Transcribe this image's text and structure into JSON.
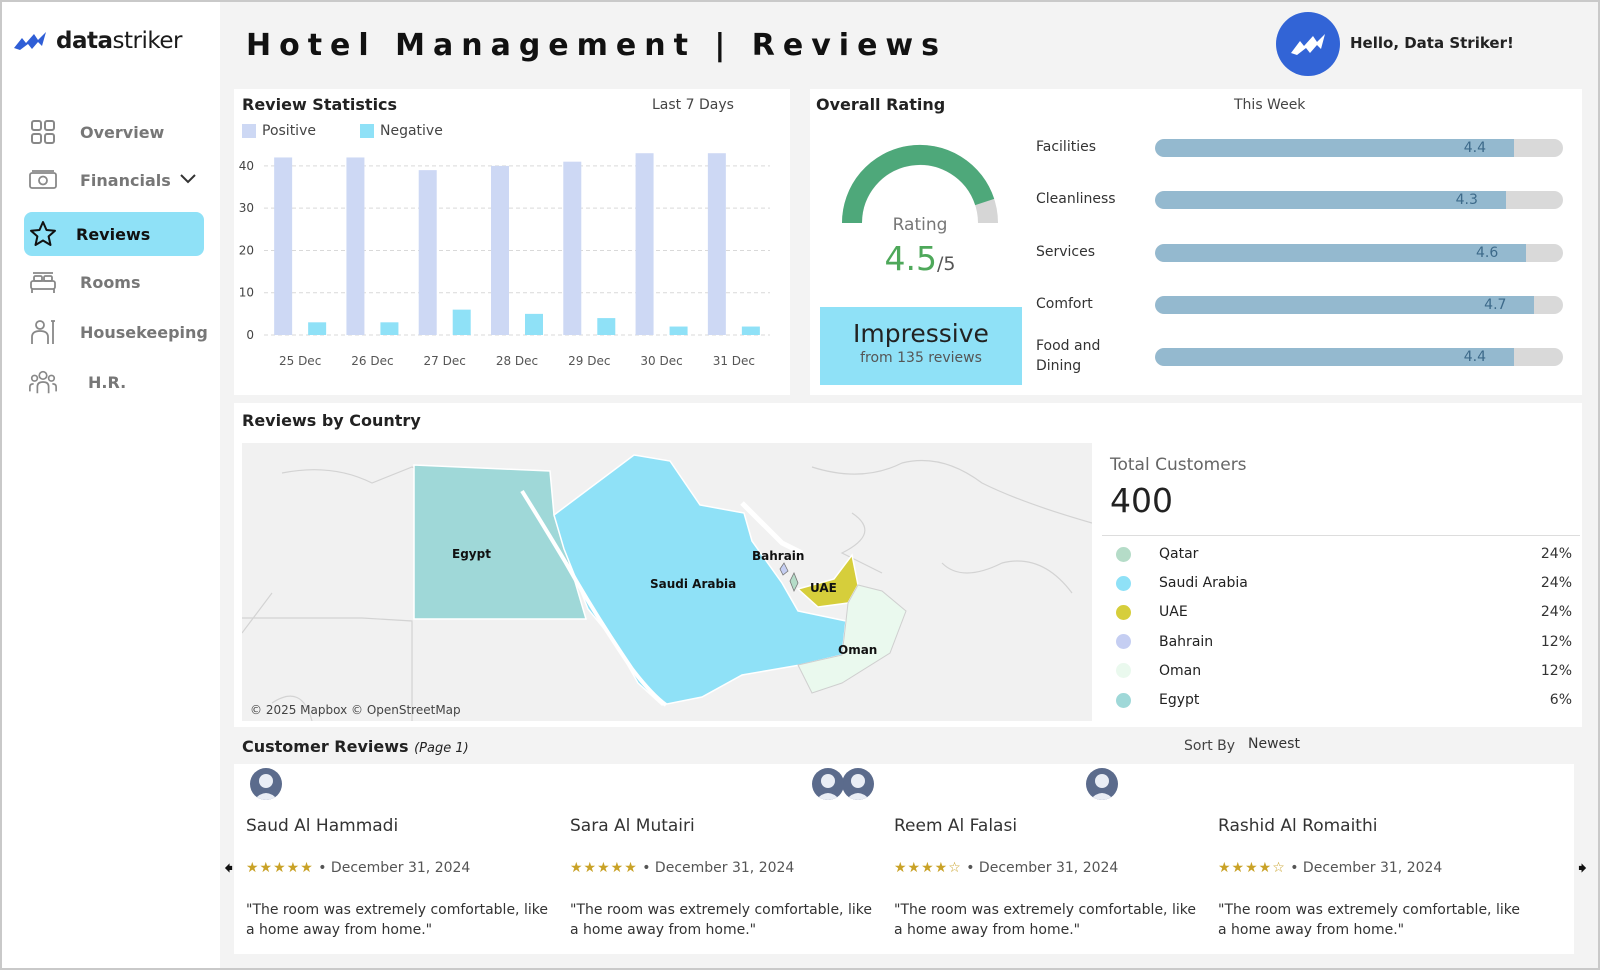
{
  "brand": {
    "logo_bold": "data",
    "logo_light": "striker"
  },
  "sidebar": {
    "items": [
      {
        "label": "Overview",
        "icon": "grid-icon"
      },
      {
        "label": "Financials",
        "icon": "money-icon"
      },
      {
        "label": "Reviews",
        "icon": "star-icon",
        "active": true
      },
      {
        "label": "Rooms",
        "icon": "bed-icon"
      },
      {
        "label": "Housekeeping",
        "icon": "housekeeper-icon"
      },
      {
        "label": "H.R.",
        "icon": "people-icon"
      }
    ]
  },
  "header": {
    "title": "Hotel Management | Reviews",
    "greeting": "Hello, Data Striker!"
  },
  "review_stats": {
    "title": "Review Statistics",
    "period": "Last 7 Days",
    "legend": [
      "Positive",
      "Negative"
    ]
  },
  "overall": {
    "title": "Overall Rating",
    "period": "This Week",
    "gauge_label": "Rating",
    "rating_value": "4.5",
    "rating_max": "/5",
    "rating_fraction": 0.9,
    "verdict": "Impressive",
    "verdict_sub": "from 135 reviews",
    "categories": [
      {
        "label": "Facilities",
        "value": "4.4",
        "fraction": 0.88
      },
      {
        "label": "Cleanliness",
        "value": "4.3",
        "fraction": 0.86
      },
      {
        "label": "Services",
        "value": "4.6",
        "fraction": 0.91
      },
      {
        "label": "Comfort",
        "value": "4.7",
        "fraction": 0.93
      },
      {
        "label": "Food and\nDining",
        "value": "4.4",
        "fraction": 0.88
      }
    ]
  },
  "country": {
    "title": "Reviews by Country",
    "map_credit": "© 2025 Mapbox © OpenStreetMap",
    "map_labels": [
      "Egypt",
      "Saudi Arabia",
      "Bahrain",
      "UAE",
      "Oman"
    ],
    "total_label": "Total Customers",
    "total_value": "400",
    "rows": [
      {
        "name": "Qatar",
        "pct": "24%",
        "color": "#b5dcc8"
      },
      {
        "name": "Saudi Arabia",
        "pct": "24%",
        "color": "#8fe1f7"
      },
      {
        "name": "UAE",
        "pct": "24%",
        "color": "#d6ce3b"
      },
      {
        "name": "Bahrain",
        "pct": "12%",
        "color": "#c5cef2"
      },
      {
        "name": "Oman",
        "pct": "12%",
        "color": "#eaf9ee"
      },
      {
        "name": "Egypt",
        "pct": "6%",
        "color": "#9fd8d8"
      }
    ]
  },
  "reviews": {
    "title": "Customer Reviews",
    "page": "(Page 1)",
    "sort_label": "Sort By",
    "sort_value": "Newest",
    "prev_arrow": "🠸",
    "next_arrow": "🠺",
    "items": [
      {
        "name": "Saud Al Hammadi",
        "stars": "★★★★★",
        "date": "• December 31, 2024",
        "text": "\"The room was extremely comfortable, like a home away from home.\""
      },
      {
        "name": "Sara Al Mutairi",
        "stars": "★★★★★",
        "date": "• December 31, 2024",
        "text": "\"The room was extremely comfortable, like a home away from home.\""
      },
      {
        "name": "Reem Al Falasi",
        "stars": "★★★★☆",
        "date": "• December 31, 2024",
        "text": "\"The room was extremely comfortable, like a home away from home.\""
      },
      {
        "name": "Rashid Al Romaithi",
        "stars": "★★★★☆",
        "date": "• December 31, 2024",
        "text": "\"The room was extremely comfortable, like a home away from home.\""
      }
    ]
  },
  "chart_data": {
    "type": "bar",
    "title": "Review Statistics",
    "categories": [
      "25 Dec",
      "26 Dec",
      "27 Dec",
      "28 Dec",
      "29 Dec",
      "30 Dec",
      "31 Dec"
    ],
    "series": [
      {
        "name": "Positive",
        "values": [
          42,
          42,
          39,
          40,
          41,
          43,
          43
        ],
        "color": "#cdd8f4"
      },
      {
        "name": "Negative",
        "values": [
          3,
          3,
          6,
          5,
          4,
          2,
          2
        ],
        "color": "#8fe1f7"
      }
    ],
    "yticks": [
      0,
      10,
      20,
      30,
      40
    ],
    "ylim": [
      0,
      44
    ],
    "grid": true
  }
}
